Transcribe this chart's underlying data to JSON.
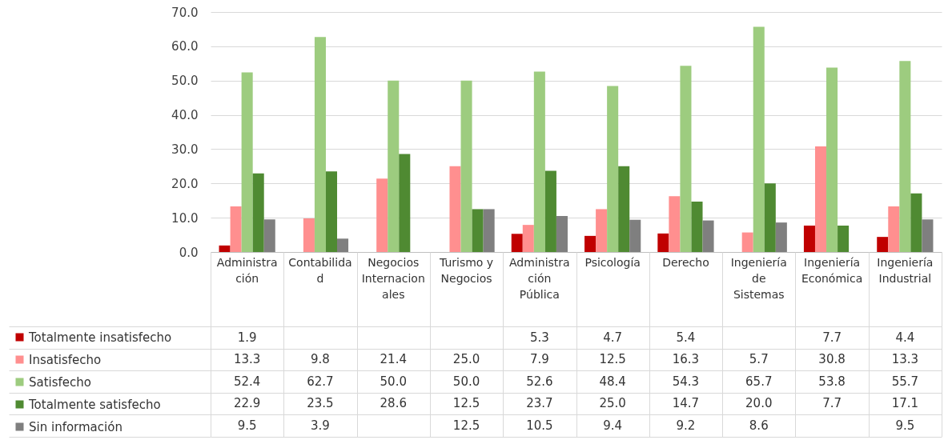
{
  "chart_data": {
    "type": "bar",
    "categories": [
      "Administración",
      "Contabilidad",
      "Negocios Internacionales",
      "Turismo y Negocios",
      "Administración Pública",
      "Psicología",
      "Derecho",
      "Ingeniería de Sistemas",
      "Ingeniería Económica",
      "Ingeniería Industrial"
    ],
    "series": [
      {
        "name": "Totalmente insatisfecho",
        "color": "#c00000",
        "values": [
          1.9,
          null,
          null,
          null,
          5.3,
          4.7,
          5.4,
          null,
          7.7,
          4.4
        ],
        "value_labels": [
          "1.9",
          null,
          null,
          null,
          "5.3",
          "4.7",
          "5.4",
          null,
          "7.7",
          "4.4"
        ]
      },
      {
        "name": "Insatisfecho",
        "color": "#ff8f8f",
        "values": [
          13.3,
          9.8,
          21.4,
          25.0,
          7.9,
          12.5,
          16.3,
          5.7,
          30.8,
          13.3
        ],
        "value_labels": [
          "13.3",
          "9.8",
          "21.4",
          "25.0",
          "7.9",
          "12.5",
          "16.3",
          "5.7",
          "30.8",
          "13.3"
        ]
      },
      {
        "name": "Satisfecho",
        "color": "#9dcc7f",
        "values": [
          52.4,
          62.7,
          50.0,
          50.0,
          52.6,
          48.4,
          54.3,
          65.7,
          53.8,
          55.7
        ],
        "value_labels": [
          "52.4",
          "62.7",
          "50.0",
          "50.0",
          "52.6",
          "48.4",
          "54.3",
          "65.7",
          "53.8",
          "55.7"
        ]
      },
      {
        "name": "Totalmente satisfecho",
        "color": "#4f8a32",
        "values": [
          22.9,
          23.5,
          28.6,
          12.5,
          23.7,
          25.0,
          14.7,
          20.0,
          7.7,
          17.1
        ],
        "value_labels": [
          "22.9",
          "23.5",
          "28.6",
          "12.5",
          "23.7",
          "25.0",
          "14.7",
          "20.0",
          "7.7",
          "17.1"
        ]
      },
      {
        "name": "Sin información",
        "color": "#7f7f7f",
        "values": [
          9.5,
          3.9,
          null,
          12.5,
          10.5,
          9.4,
          9.2,
          8.6,
          null,
          9.5
        ],
        "value_labels": [
          "9.5",
          "3.9",
          null,
          "12.5",
          "10.5",
          "9.4",
          "9.2",
          "8.6",
          null,
          "9.5"
        ]
      }
    ],
    "ylim": [
      0,
      70
    ],
    "yticks": [
      {
        "value": 0,
        "label": "0.0"
      },
      {
        "value": 10,
        "label": "10.0"
      },
      {
        "value": 20,
        "label": "20.0"
      },
      {
        "value": 30,
        "label": "30.0"
      },
      {
        "value": 40,
        "label": "40.0"
      },
      {
        "value": 50,
        "label": "50.0"
      },
      {
        "value": 60,
        "label": "60.0"
      },
      {
        "value": 70,
        "label": "70.0"
      }
    ],
    "grid": "y",
    "legend": "bottom left"
  }
}
